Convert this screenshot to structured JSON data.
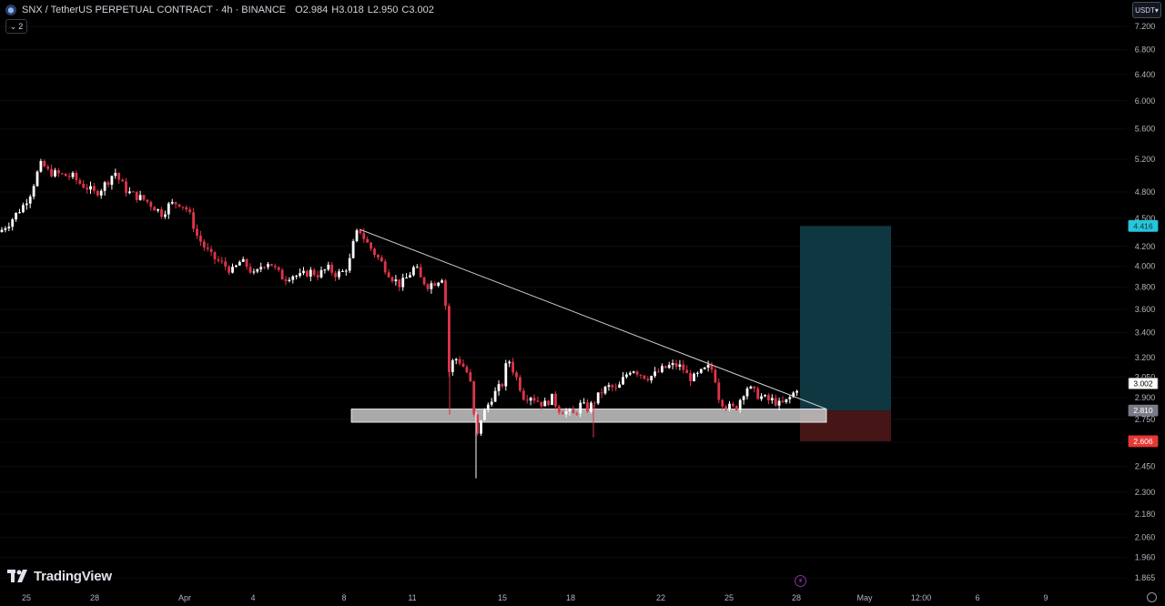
{
  "header": {
    "symbol": "SNX / TetherUS PERPETUAL CONTRACT · 4h · BINANCE",
    "open": "O2.984",
    "high": "H3.018",
    "low": "L2.950",
    "close": "C3.002",
    "indicator_count": "2"
  },
  "currency_label": "USDT",
  "branding": "TradingView",
  "colors": {
    "background": "#000000",
    "up": "#ffffff",
    "down": "#e0344a",
    "trendline": "#d0d0d0",
    "support_zone": "#c8c8c8",
    "target_zone": "#0f3a44",
    "stop_zone": "#4a1616",
    "target_price_tag": "#26c6da",
    "stop_price_tag": "#e53935",
    "entry_price_tag": "#787b86"
  },
  "chart_data": {
    "type": "candlestick",
    "symbol": "SNX/USDT",
    "timeframe": "4h",
    "y_scale": "log",
    "ylim": [
      1.83,
      7.5
    ],
    "y_ticks": [
      "7.200",
      "6.800",
      "6.400",
      "6.000",
      "5.600",
      "5.200",
      "4.800",
      "4.500",
      "4.200",
      "4.000",
      "3.800",
      "3.600",
      "3.400",
      "3.200",
      "3.050",
      "2.900",
      "2.750",
      "2.600",
      "2.450",
      "2.300",
      "2.180",
      "2.060",
      "1.960",
      "1.865"
    ],
    "x_ticks": [
      "25",
      "28",
      "Apr",
      "4",
      "8",
      "11",
      "15",
      "18",
      "22",
      "25",
      "28",
      "May",
      "12:00",
      "6",
      "9"
    ],
    "price_labels": {
      "current": "3.002",
      "target": "4.416",
      "entry": "2.810",
      "stop": "2.606"
    },
    "path": [
      [
        0,
        4.35
      ],
      [
        4,
        4.4
      ],
      [
        10,
        4.45
      ],
      [
        18,
        4.55
      ],
      [
        26,
        4.65
      ],
      [
        34,
        4.8
      ],
      [
        40,
        5.0
      ],
      [
        46,
        5.15
      ],
      [
        52,
        5.05
      ],
      [
        60,
        5.02
      ],
      [
        70,
        5.0
      ],
      [
        80,
        4.98
      ],
      [
        88,
        4.9
      ],
      [
        96,
        4.85
      ],
      [
        104,
        4.78
      ],
      [
        112,
        4.85
      ],
      [
        120,
        4.95
      ],
      [
        126,
        5.05
      ],
      [
        132,
        4.92
      ],
      [
        140,
        4.8
      ],
      [
        150,
        4.75
      ],
      [
        160,
        4.7
      ],
      [
        170,
        4.62
      ],
      [
        178,
        4.55
      ],
      [
        186,
        4.65
      ],
      [
        196,
        4.68
      ],
      [
        204,
        4.62
      ],
      [
        210,
        4.5
      ],
      [
        216,
        4.32
      ],
      [
        224,
        4.2
      ],
      [
        232,
        4.1
      ],
      [
        240,
        4.05
      ],
      [
        248,
        4.0
      ],
      [
        256,
        3.95
      ],
      [
        264,
        4.05
      ],
      [
        272,
        4.0
      ],
      [
        280,
        3.9
      ],
      [
        288,
        4.02
      ],
      [
        296,
        4.05
      ],
      [
        304,
        3.95
      ],
      [
        312,
        3.88
      ],
      [
        320,
        3.92
      ],
      [
        330,
        3.9
      ],
      [
        340,
        3.95
      ],
      [
        350,
        3.92
      ],
      [
        360,
        3.98
      ],
      [
        370,
        3.92
      ],
      [
        378,
        3.95
      ],
      [
        384,
        4.05
      ],
      [
        390,
        4.3
      ],
      [
        395,
        4.38
      ],
      [
        402,
        4.25
      ],
      [
        410,
        4.15
      ],
      [
        418,
        4.05
      ],
      [
        426,
        3.95
      ],
      [
        432,
        3.88
      ],
      [
        440,
        3.82
      ],
      [
        448,
        3.9
      ],
      [
        456,
        4.0
      ],
      [
        462,
        3.88
      ],
      [
        470,
        3.82
      ],
      [
        478,
        3.85
      ],
      [
        486,
        3.9
      ],
      [
        490,
        3.6
      ],
      [
        494,
        3.0
      ],
      [
        498,
        3.2
      ],
      [
        504,
        3.18
      ],
      [
        510,
        3.12
      ],
      [
        516,
        3.05
      ],
      [
        520,
        2.8
      ],
      [
        524,
        2.62
      ],
      [
        528,
        2.75
      ],
      [
        534,
        2.82
      ],
      [
        540,
        2.9
      ],
      [
        546,
        2.95
      ],
      [
        552,
        3.0
      ],
      [
        558,
        3.2
      ],
      [
        564,
        3.1
      ],
      [
        570,
        3.0
      ],
      [
        576,
        2.9
      ],
      [
        582,
        2.92
      ],
      [
        590,
        2.88
      ],
      [
        598,
        2.85
      ],
      [
        606,
        2.9
      ],
      [
        614,
        2.82
      ],
      [
        622,
        2.8
      ],
      [
        630,
        2.78
      ],
      [
        638,
        2.85
      ],
      [
        646,
        2.82
      ],
      [
        654,
        2.88
      ],
      [
        662,
        2.95
      ],
      [
        670,
        2.98
      ],
      [
        678,
        2.95
      ],
      [
        686,
        3.05
      ],
      [
        694,
        3.12
      ],
      [
        702,
        3.08
      ],
      [
        710,
        3.05
      ],
      [
        718,
        3.06
      ],
      [
        726,
        3.1
      ],
      [
        734,
        3.13
      ],
      [
        742,
        3.14
      ],
      [
        750,
        3.12
      ],
      [
        756,
        3.05
      ],
      [
        762,
        3.04
      ],
      [
        770,
        3.08
      ],
      [
        778,
        3.12
      ],
      [
        784,
        3.1
      ],
      [
        790,
        2.9
      ],
      [
        796,
        2.85
      ],
      [
        802,
        2.83
      ],
      [
        808,
        2.82
      ],
      [
        814,
        2.9
      ],
      [
        820,
        2.98
      ],
      [
        826,
        2.95
      ],
      [
        832,
        2.92
      ],
      [
        838,
        2.9
      ],
      [
        844,
        2.88
      ],
      [
        850,
        2.88
      ],
      [
        856,
        2.85
      ],
      [
        862,
        2.86
      ],
      [
        868,
        2.9
      ],
      [
        874,
        2.95
      ],
      [
        878,
        3.0
      ]
    ],
    "drawings": [
      {
        "type": "trendline",
        "from": {
          "x_index": 395,
          "price": 4.38
        },
        "to": {
          "x_index": 908,
          "price": 2.82
        }
      },
      {
        "type": "support_zone",
        "price_top": 2.82,
        "price_bottom": 2.73
      },
      {
        "type": "long_position",
        "entry": 2.81,
        "target": 4.416,
        "stop": 2.606
      }
    ]
  }
}
